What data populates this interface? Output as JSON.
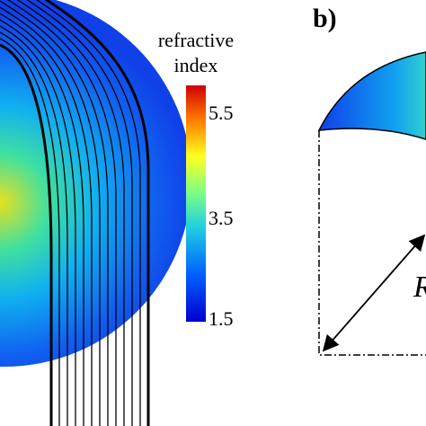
{
  "colorbar": {
    "title": [
      "refractive",
      "index"
    ],
    "ticks": [
      "5.5",
      "3.5",
      "1.5"
    ]
  },
  "panel_label": "b)",
  "radius_label": "R"
}
